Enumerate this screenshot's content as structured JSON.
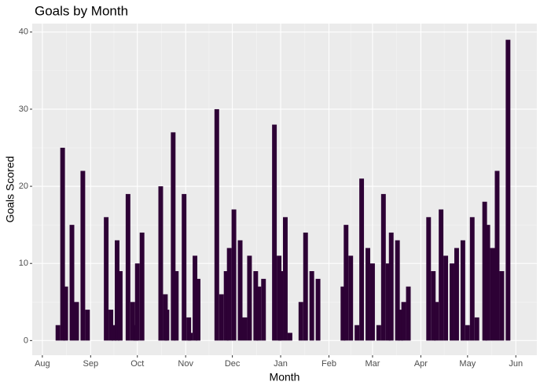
{
  "chart_data": {
    "type": "bar",
    "title": "Goals by Month",
    "x_label": "Month",
    "y_label": "Goals Scored",
    "color": "#2d0135",
    "grid": true,
    "x": [
      10,
      13,
      15,
      19,
      22,
      26,
      29,
      41,
      44,
      46,
      48,
      50,
      55,
      58,
      60,
      61,
      64,
      76,
      79,
      80,
      84,
      86,
      91,
      94,
      95,
      98,
      100,
      112,
      115,
      118,
      120,
      123,
      127,
      130,
      133,
      137,
      139,
      142,
      149,
      152,
      153,
      156,
      159,
      166,
      169,
      173,
      177,
      193,
      195,
      198,
      202,
      205,
      209,
      212,
      216,
      219,
      222,
      224,
      228,
      230,
      232,
      235,
      248,
      251,
      253,
      256,
      259,
      263,
      266,
      270,
      273,
      276,
      279,
      284,
      286,
      289,
      292,
      295,
      299
    ],
    "values": [
      2,
      25,
      7,
      15,
      5,
      22,
      4,
      16,
      4,
      2,
      13,
      9,
      19,
      5,
      2,
      10,
      14,
      20,
      6,
      4,
      27,
      9,
      19,
      3,
      1,
      11,
      8,
      30,
      6,
      9,
      12,
      17,
      13,
      3,
      11,
      9,
      7,
      8,
      28,
      11,
      9,
      16,
      1,
      5,
      14,
      9,
      8,
      7,
      15,
      11,
      2,
      21,
      12,
      10,
      2,
      19,
      10,
      14,
      13,
      4,
      5,
      7,
      16,
      9,
      5,
      17,
      11,
      10,
      12,
      13,
      2,
      16,
      3,
      18,
      15,
      12,
      22,
      9,
      39
    ],
    "xlim": [
      -6.5,
      317.5
    ],
    "xticks": [
      {
        "value": 0,
        "label": "Aug"
      },
      {
        "value": 31,
        "label": "Sep"
      },
      {
        "value": 61,
        "label": "Oct"
      },
      {
        "value": 92,
        "label": "Nov"
      },
      {
        "value": 122,
        "label": "Dec"
      },
      {
        "value": 153,
        "label": "Jan"
      },
      {
        "value": 184,
        "label": "Feb"
      },
      {
        "value": 212,
        "label": "Mar"
      },
      {
        "value": 243,
        "label": "Apr"
      },
      {
        "value": 273,
        "label": "May"
      },
      {
        "value": 304,
        "label": "Jun"
      }
    ],
    "ylim": [
      -1.9,
      41.1
    ],
    "yticks": [
      0,
      10,
      20,
      30,
      40
    ]
  }
}
